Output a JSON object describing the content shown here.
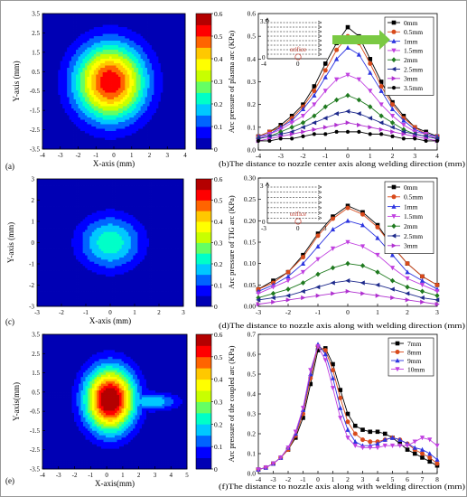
{
  "colorbar": {
    "ticks": [
      "0",
      "0.1",
      "0.2",
      "0.3",
      "0.4",
      "0.5",
      "0.6"
    ],
    "colors": [
      "#0000b4",
      "#0000ff",
      "#0064ff",
      "#00c8ff",
      "#00ffc8",
      "#64ff64",
      "#c8ff00",
      "#ffff00",
      "#ffc800",
      "#ff6400",
      "#ff0000",
      "#b40000"
    ]
  },
  "panels": [
    {
      "letter": "(a)",
      "kind": "contour",
      "xlabel": "X-axis (mm)",
      "ylabel": "Y-axis (mm)",
      "xticks": [
        "-4",
        "-3",
        "-2",
        "-1",
        "0",
        "1",
        "2",
        "3",
        "4"
      ],
      "xlim": [
        -4,
        4
      ],
      "yticks": [
        "-3.5",
        "-2.5",
        "-1.5",
        "-0.5",
        "0.5",
        "1.5",
        "2.5",
        "3.5"
      ],
      "ylim": [
        -3.5,
        3.5
      ],
      "field": {
        "cx": -0.2,
        "cy": -0.05,
        "rx": 1.9,
        "ry": 1.9,
        "peak": 0.55,
        "tail": 0
      }
    },
    {
      "letter": "(c)",
      "kind": "contour",
      "xlabel": "X-axis (mm)",
      "ylabel": "Y-axis (mm)",
      "xticks": [
        "-3",
        "-2",
        "-1",
        "0",
        "1",
        "2",
        "3"
      ],
      "xlim": [
        -3,
        3
      ],
      "yticks": [
        "-3",
        "-2",
        "-1",
        "0",
        "1",
        "2",
        "3"
      ],
      "ylim": [
        -3,
        3
      ],
      "field": {
        "cx": 0.0,
        "cy": 0.0,
        "rx": 1.25,
        "ry": 1.25,
        "peak": 0.24,
        "tail": 0
      }
    },
    {
      "letter": "(e)",
      "kind": "contour",
      "xlabel": "X-axis(mm)",
      "ylabel": "Y-axis(mm)",
      "xticks": [
        "-4",
        "-3",
        "-2",
        "-1",
        "0",
        "1",
        "2",
        "3",
        "4",
        "5"
      ],
      "xlim": [
        -4,
        5
      ],
      "yticks": [
        "-3.5",
        "-2.5",
        "-1.5",
        "-0.5",
        "0.5",
        "1.5",
        "2.5",
        "3.5"
      ],
      "ylim": [
        -3.5,
        3.5
      ],
      "field": {
        "cx": 0.2,
        "cy": 0.1,
        "rx": 1.5,
        "ry": 1.6,
        "peak": 0.64,
        "tail": 1
      }
    }
  ],
  "chart_data": [
    {
      "type": "line",
      "letter": "(b)",
      "xlabel": "The distance to nozzle center axis along welding direction (mm)",
      "ylabel": "Arc pressure of plasma arc (KPa)",
      "xlim": [
        -4,
        4
      ],
      "ylim": [
        0,
        0.6
      ],
      "xticks": [
        "-4",
        "-3",
        "-2",
        "-1",
        "0",
        "1",
        "2",
        "3",
        "4"
      ],
      "yticks": [
        "0.0",
        "0.1",
        "0.2",
        "0.3",
        "0.4",
        "0.5",
        "0.6"
      ],
      "x": [
        -4,
        -3.5,
        -3,
        -2.5,
        -2,
        -1.5,
        -1,
        -0.5,
        0,
        0.5,
        1,
        1.5,
        2,
        2.5,
        3,
        3.5,
        4
      ],
      "series": [
        {
          "name": "0mm",
          "color": "#000000",
          "marker": "square",
          "values": [
            0.06,
            0.08,
            0.11,
            0.15,
            0.2,
            0.28,
            0.38,
            0.47,
            0.54,
            0.5,
            0.4,
            0.3,
            0.21,
            0.15,
            0.1,
            0.08,
            0.06
          ]
        },
        {
          "name": "0.5mm",
          "color": "#d84a1b",
          "marker": "circle",
          "values": [
            0.06,
            0.08,
            0.1,
            0.14,
            0.19,
            0.26,
            0.35,
            0.44,
            0.5,
            0.47,
            0.38,
            0.28,
            0.2,
            0.14,
            0.1,
            0.07,
            0.06
          ]
        },
        {
          "name": "1mm",
          "color": "#2d35e0",
          "marker": "triangle",
          "values": [
            0.06,
            0.07,
            0.1,
            0.13,
            0.18,
            0.24,
            0.32,
            0.4,
            0.45,
            0.42,
            0.34,
            0.26,
            0.18,
            0.13,
            0.09,
            0.07,
            0.06
          ]
        },
        {
          "name": "1.5mm",
          "color": "#c040e0",
          "marker": "tridown",
          "values": [
            0.05,
            0.07,
            0.09,
            0.12,
            0.15,
            0.2,
            0.26,
            0.31,
            0.33,
            0.31,
            0.26,
            0.2,
            0.15,
            0.11,
            0.08,
            0.07,
            0.05
          ]
        },
        {
          "name": "2mm",
          "color": "#1f7a1f",
          "marker": "diamond",
          "values": [
            0.05,
            0.06,
            0.08,
            0.1,
            0.12,
            0.15,
            0.19,
            0.22,
            0.24,
            0.22,
            0.19,
            0.15,
            0.12,
            0.09,
            0.07,
            0.06,
            0.05
          ]
        },
        {
          "name": "2.5mm",
          "color": "#1e2a8c",
          "marker": "triangle-left",
          "values": [
            0.05,
            0.06,
            0.07,
            0.08,
            0.1,
            0.12,
            0.14,
            0.16,
            0.17,
            0.16,
            0.14,
            0.12,
            0.1,
            0.08,
            0.07,
            0.06,
            0.05
          ]
        },
        {
          "name": "3mm",
          "color": "#b030d0",
          "marker": "triangle-right",
          "values": [
            0.04,
            0.05,
            0.06,
            0.07,
            0.08,
            0.09,
            0.1,
            0.11,
            0.12,
            0.11,
            0.1,
            0.09,
            0.08,
            0.07,
            0.06,
            0.05,
            0.04
          ]
        },
        {
          "name": "3.5mm",
          "color": "#000000",
          "marker": "hexagon",
          "values": [
            0.04,
            0.04,
            0.05,
            0.05,
            0.06,
            0.07,
            0.07,
            0.08,
            0.08,
            0.08,
            0.07,
            0.07,
            0.06,
            0.05,
            0.05,
            0.04,
            0.04
          ]
        }
      ],
      "inset": {
        "xticks": [
          "-4",
          "0",
          "4"
        ],
        "yticks": [
          "0",
          "3.5"
        ],
        "label": "orifice"
      },
      "legend": "right"
    },
    {
      "type": "line",
      "letter": "(d)",
      "xlabel": "The distance to  nozzle axis along with welding direction (mm)",
      "ylabel": "Arc pressure of TIG arc (KPa)",
      "xlim": [
        -3,
        3
      ],
      "ylim": [
        0,
        0.3
      ],
      "xticks": [
        "-3",
        "-2",
        "-1",
        "0",
        "1",
        "2",
        "3"
      ],
      "yticks": [
        "0.00",
        "0.05",
        "0.10",
        "0.15",
        "0.20",
        "0.25",
        "0.30"
      ],
      "x": [
        -3,
        -2.5,
        -2,
        -1.5,
        -1,
        -0.5,
        0,
        0.5,
        1,
        1.5,
        2,
        2.5,
        3
      ],
      "series": [
        {
          "name": "0mm",
          "color": "#000000",
          "marker": "square",
          "values": [
            0.04,
            0.06,
            0.08,
            0.12,
            0.17,
            0.21,
            0.235,
            0.22,
            0.19,
            0.14,
            0.1,
            0.07,
            0.05
          ]
        },
        {
          "name": "0.5mm",
          "color": "#d84a1b",
          "marker": "circle",
          "values": [
            0.04,
            0.055,
            0.08,
            0.115,
            0.165,
            0.205,
            0.23,
            0.215,
            0.185,
            0.14,
            0.1,
            0.07,
            0.05
          ]
        },
        {
          "name": "1mm",
          "color": "#2d35e0",
          "marker": "triangle",
          "values": [
            0.035,
            0.05,
            0.07,
            0.1,
            0.14,
            0.18,
            0.2,
            0.19,
            0.16,
            0.12,
            0.08,
            0.06,
            0.04
          ]
        },
        {
          "name": "1.5mm",
          "color": "#c040e0",
          "marker": "tridown",
          "values": [
            0.03,
            0.045,
            0.06,
            0.08,
            0.11,
            0.135,
            0.15,
            0.14,
            0.12,
            0.09,
            0.065,
            0.05,
            0.035
          ]
        },
        {
          "name": "2mm",
          "color": "#1f7a1f",
          "marker": "diamond",
          "values": [
            0.02,
            0.03,
            0.04,
            0.055,
            0.075,
            0.09,
            0.1,
            0.095,
            0.08,
            0.06,
            0.045,
            0.035,
            0.025
          ]
        },
        {
          "name": "2.5mm",
          "color": "#1e2a8c",
          "marker": "triangle-left",
          "values": [
            0.015,
            0.02,
            0.025,
            0.035,
            0.045,
            0.055,
            0.06,
            0.055,
            0.05,
            0.04,
            0.03,
            0.02,
            0.015
          ]
        },
        {
          "name": "3mm",
          "color": "#b030d0",
          "marker": "triangle-right",
          "values": [
            0.005,
            0.01,
            0.015,
            0.02,
            0.025,
            0.03,
            0.035,
            0.03,
            0.025,
            0.02,
            0.015,
            0.01,
            0.005
          ]
        }
      ],
      "inset": {
        "xticks": [
          "-3",
          "0",
          "3"
        ],
        "yticks": [
          "0",
          "3"
        ],
        "label": "orifice"
      },
      "legend": "right"
    },
    {
      "type": "line",
      "letter": "(f)",
      "xlabel": "The distance to nozzle axis along with welding direction (mm)",
      "ylabel": "Arc pressure of the coupled arc (KPa)",
      "xlim": [
        -4,
        8
      ],
      "ylim": [
        0,
        0.7
      ],
      "xticks": [
        "-4",
        "-3",
        "-2",
        "-1",
        "0",
        "1",
        "2",
        "3",
        "4",
        "5",
        "6",
        "7",
        "8"
      ],
      "yticks": [
        "0.0",
        "0.1",
        "0.2",
        "0.3",
        "0.4",
        "0.5",
        "0.6",
        "0.7"
      ],
      "x": [
        -4,
        -3.5,
        -3,
        -2.5,
        -2,
        -1.5,
        -1,
        -0.5,
        0,
        0.5,
        1,
        1.5,
        2,
        2.5,
        3,
        3.5,
        4,
        4.5,
        5,
        5.5,
        6,
        6.5,
        7,
        7.5,
        8
      ],
      "series": [
        {
          "name": "7mm",
          "color": "#000000",
          "marker": "square",
          "values": [
            0.02,
            0.03,
            0.05,
            0.08,
            0.12,
            0.18,
            0.28,
            0.45,
            0.62,
            0.63,
            0.55,
            0.42,
            0.3,
            0.24,
            0.22,
            0.21,
            0.21,
            0.2,
            0.18,
            0.15,
            0.12,
            0.1,
            0.08,
            0.06,
            0.04
          ]
        },
        {
          "name": "8mm",
          "color": "#d84a1b",
          "marker": "circle",
          "values": [
            0.02,
            0.03,
            0.05,
            0.08,
            0.12,
            0.19,
            0.3,
            0.48,
            0.64,
            0.62,
            0.52,
            0.38,
            0.26,
            0.2,
            0.17,
            0.16,
            0.16,
            0.17,
            0.18,
            0.17,
            0.15,
            0.12,
            0.1,
            0.08,
            0.05
          ]
        },
        {
          "name": "9mm",
          "color": "#2d35e0",
          "marker": "triangle",
          "values": [
            0.02,
            0.03,
            0.05,
            0.08,
            0.13,
            0.2,
            0.32,
            0.5,
            0.65,
            0.6,
            0.48,
            0.33,
            0.22,
            0.16,
            0.14,
            0.14,
            0.15,
            0.17,
            0.18,
            0.17,
            0.15,
            0.13,
            0.12,
            0.1,
            0.07
          ]
        },
        {
          "name": "10mm",
          "color": "#c040e0",
          "marker": "tridown",
          "values": [
            0.02,
            0.03,
            0.05,
            0.08,
            0.13,
            0.21,
            0.33,
            0.52,
            0.64,
            0.57,
            0.43,
            0.28,
            0.18,
            0.14,
            0.13,
            0.13,
            0.13,
            0.14,
            0.14,
            0.14,
            0.14,
            0.16,
            0.18,
            0.17,
            0.14
          ]
        }
      ],
      "legend": "top-right"
    }
  ]
}
